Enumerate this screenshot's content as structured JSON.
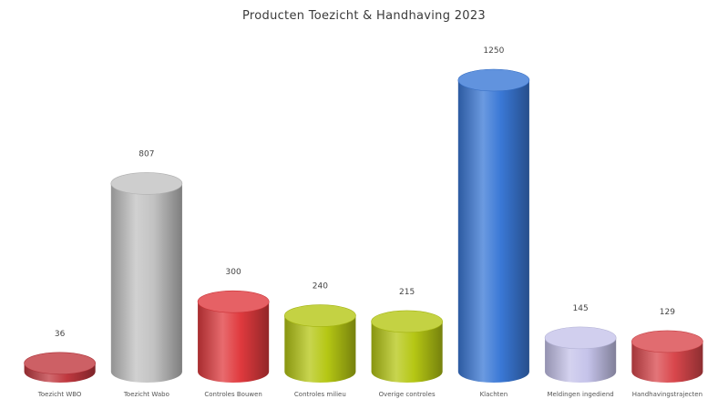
{
  "chart_data": {
    "type": "bar",
    "title": "Producten Toezicht & Handhaving 2023",
    "xlabel": "",
    "ylabel": "",
    "ylim": [
      0,
      1250
    ],
    "grid": false,
    "legend": "none",
    "categories": [
      "Toezicht WBO",
      "Toezicht Wabo",
      "Controles Bouwen",
      "Controles milieu",
      "Overige controles",
      "Klachten",
      "Meldingen ingediend",
      "Handhavingstrajecten"
    ],
    "values": [
      36,
      807,
      300,
      240,
      215,
      1250,
      145,
      129
    ],
    "value_labels": [
      "36",
      "807",
      "300",
      "240",
      "215",
      "1250",
      "145",
      "129"
    ],
    "colors": [
      "#c0383f",
      "#c2c2c2",
      "#e03a3e",
      "#b5c714",
      "#b5c714",
      "#3a78d6",
      "#c5c3ea",
      "#d9474c"
    ]
  }
}
